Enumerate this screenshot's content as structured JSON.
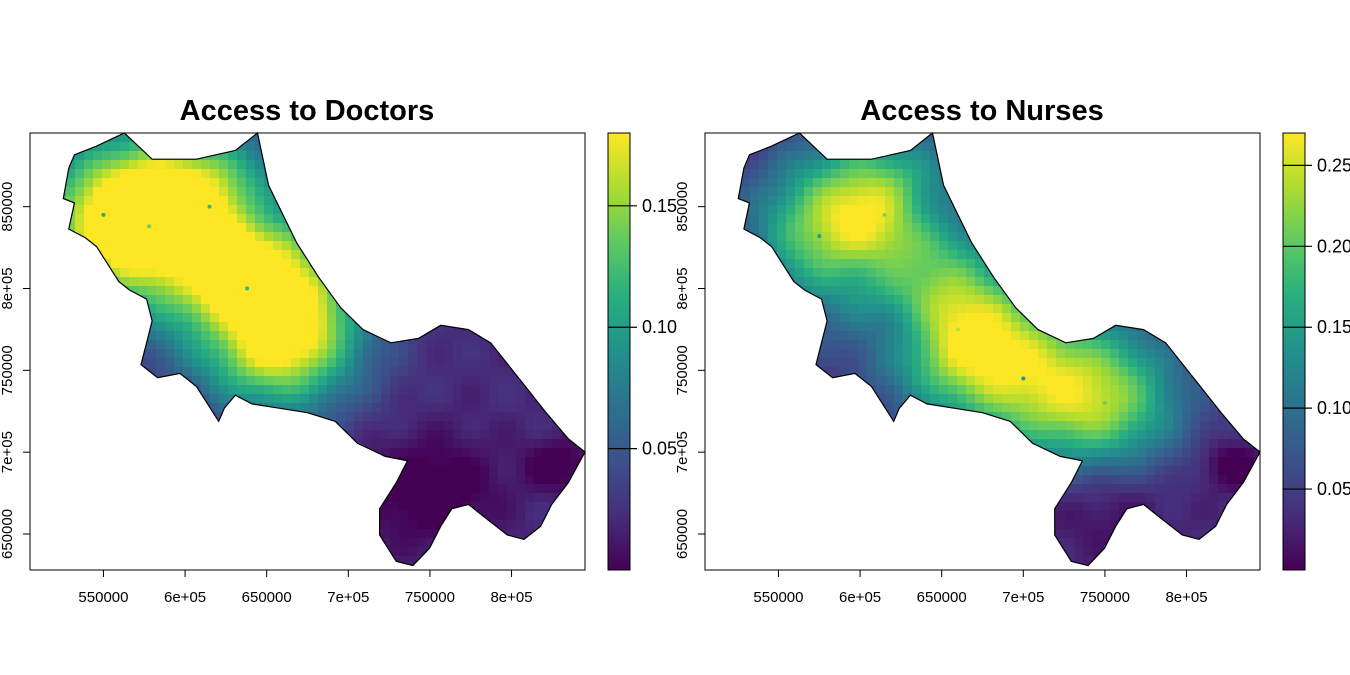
{
  "chart_data": [
    {
      "type": "heatmap",
      "title": "Access to Doctors",
      "xlabel": "",
      "ylabel": "",
      "x_ticks": [
        "550000",
        "6e+05",
        "650000",
        "7e+05",
        "750000",
        "8e+05"
      ],
      "x_tick_values": [
        550000,
        600000,
        650000,
        700000,
        750000,
        800000
      ],
      "y_ticks": [
        "650000",
        "7e+05",
        "750000",
        "8e+05",
        "850000"
      ],
      "y_tick_values": [
        650000,
        700000,
        750000,
        800000,
        850000
      ],
      "xlim": [
        505000,
        845000
      ],
      "ylim": [
        628000,
        895000
      ],
      "colorbar": {
        "colormap": "viridis",
        "range": [
          0.0,
          0.18
        ],
        "ticks": [
          "0.05",
          "0.10",
          "0.15"
        ],
        "tick_values": [
          0.05,
          0.1,
          0.15
        ]
      },
      "hotspots": [
        {
          "x": 660000,
          "y": 775000,
          "value": 0.18
        },
        {
          "x": 578000,
          "y": 838000,
          "value": 0.14
        },
        {
          "x": 615000,
          "y": 850000,
          "value": 0.12
        },
        {
          "x": 638000,
          "y": 800000,
          "value": 0.12
        },
        {
          "x": 550000,
          "y": 845000,
          "value": 0.11
        }
      ],
      "grid": false,
      "legend": "right colorbar"
    },
    {
      "type": "heatmap",
      "title": "Access to Nurses",
      "xlabel": "",
      "ylabel": "",
      "x_ticks": [
        "550000",
        "6e+05",
        "650000",
        "7e+05",
        "750000",
        "8e+05"
      ],
      "x_tick_values": [
        550000,
        600000,
        650000,
        700000,
        750000,
        800000
      ],
      "y_ticks": [
        "650000",
        "7e+05",
        "750000",
        "8e+05",
        "850000"
      ],
      "y_tick_values": [
        650000,
        700000,
        750000,
        800000,
        850000
      ],
      "xlim": [
        505000,
        845000
      ],
      "ylim": [
        628000,
        895000
      ],
      "colorbar": {
        "colormap": "viridis",
        "range": [
          0.0,
          0.27
        ],
        "ticks": [
          "0.05",
          "0.10",
          "0.15",
          "0.20",
          "0.25"
        ],
        "tick_values": [
          0.05,
          0.1,
          0.15,
          0.2,
          0.25
        ]
      },
      "hotspots": [
        {
          "x": 660000,
          "y": 775000,
          "value": 0.24
        },
        {
          "x": 615000,
          "y": 845000,
          "value": 0.22
        },
        {
          "x": 750000,
          "y": 730000,
          "value": 0.21
        },
        {
          "x": 575000,
          "y": 832000,
          "value": 0.15
        },
        {
          "x": 700000,
          "y": 745000,
          "value": 0.14
        }
      ],
      "grid": false,
      "legend": "right colorbar"
    }
  ]
}
